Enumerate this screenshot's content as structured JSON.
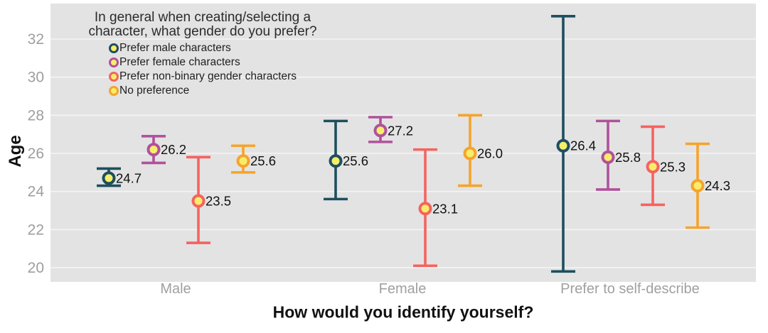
{
  "chart_data": {
    "type": "errorbar",
    "xlabel": "How would you identify yourself?",
    "ylabel": "Age",
    "legend_title_line1": "In general when creating/selecting a",
    "legend_title_line2": "character, what gender do you prefer?",
    "legend_position": "inside-top-left",
    "grid": "horizontal-major-only",
    "categories": [
      "Male",
      "Female",
      "Prefer to self-describe"
    ],
    "yticks": [
      20,
      22,
      24,
      26,
      28,
      30,
      32
    ],
    "ylim": [
      19.3,
      33.9
    ],
    "panel_bg": "#e3e3e3",
    "gridline_color": "#f5f5f5",
    "marker_fill": "#f8ed6b",
    "tick_label_color": "#9e9e9e",
    "category_label_color": "#a0a0a0",
    "value_label_color": "#111111",
    "series": [
      {
        "name": "Prefer male characters",
        "color": "#1d4f5e",
        "points": [
          {
            "category": "Male",
            "mean": 24.7,
            "lower": 24.3,
            "upper": 25.2
          },
          {
            "category": "Female",
            "mean": 25.6,
            "lower": 23.6,
            "upper": 27.7
          },
          {
            "category": "Prefer to self-describe",
            "mean": 26.4,
            "lower": 19.8,
            "upper": 33.2
          }
        ]
      },
      {
        "name": "Prefer female characters",
        "color": "#b1519c",
        "points": [
          {
            "category": "Male",
            "mean": 26.2,
            "lower": 25.5,
            "upper": 26.9
          },
          {
            "category": "Female",
            "mean": 27.2,
            "lower": 26.6,
            "upper": 27.9
          },
          {
            "category": "Prefer to self-describe",
            "mean": 25.8,
            "lower": 24.1,
            "upper": 27.7
          }
        ]
      },
      {
        "name": "Prefer non-binary gender characters",
        "color": "#f5635f",
        "points": [
          {
            "category": "Male",
            "mean": 23.5,
            "lower": 21.3,
            "upper": 25.8
          },
          {
            "category": "Female",
            "mean": 23.1,
            "lower": 20.1,
            "upper": 26.2
          },
          {
            "category": "Prefer to self-describe",
            "mean": 25.3,
            "lower": 23.3,
            "upper": 27.4
          }
        ]
      },
      {
        "name": "No preference",
        "color": "#f5a42c",
        "points": [
          {
            "category": "Male",
            "mean": 25.6,
            "lower": 25.0,
            "upper": 26.4
          },
          {
            "category": "Female",
            "mean": 26.0,
            "lower": 24.3,
            "upper": 28.0
          },
          {
            "category": "Prefer to self-describe",
            "mean": 24.3,
            "lower": 22.1,
            "upper": 26.5
          }
        ]
      }
    ]
  }
}
